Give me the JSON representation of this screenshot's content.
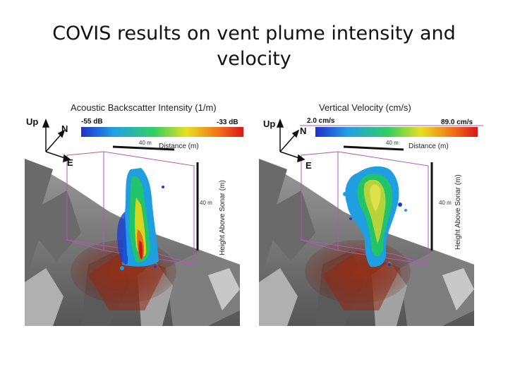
{
  "slide": {
    "title_line1": "COVIS results on vent plume intensity and",
    "title_line2": "velocity"
  },
  "panels": [
    {
      "header": "Acoustic Backscatter Intensity (1/m)",
      "scale_min": "-55 dB",
      "scale_max": "-33 dB",
      "axis_up": "Up",
      "axis_n": "N",
      "axis_e": "E",
      "scale_40m_top": "40 m",
      "distance_label": "Distance (m)",
      "scale_40m_side": "40 m",
      "height_label": "Height Above Sonar (m)",
      "plume_colors": [
        "#1a3fd0",
        "#1f9ee0",
        "#22c46a",
        "#d6d61e",
        "#e0701a",
        "#c81a1a"
      ]
    },
    {
      "header": "Vertical Velocity (cm/s)",
      "scale_min": "2.0 cm/s",
      "scale_max": "89.0 cm/s",
      "axis_up": "Up",
      "axis_n": "N",
      "axis_e": "E",
      "scale_40m_top": "40 m",
      "distance_label": "Distance (m)",
      "scale_40m_side": "40 m",
      "height_label": "Height Above Sonar (m)",
      "plume_colors": [
        "#1a3fd0",
        "#1f9ee0",
        "#22c46a",
        "#b4d43a",
        "#e0e04a"
      ]
    }
  ],
  "colors": {
    "terrain": "#8a8a8a",
    "terrain_dark": "#4a4a4a",
    "seep": "#8e2a12",
    "box": "#b05ab4"
  }
}
